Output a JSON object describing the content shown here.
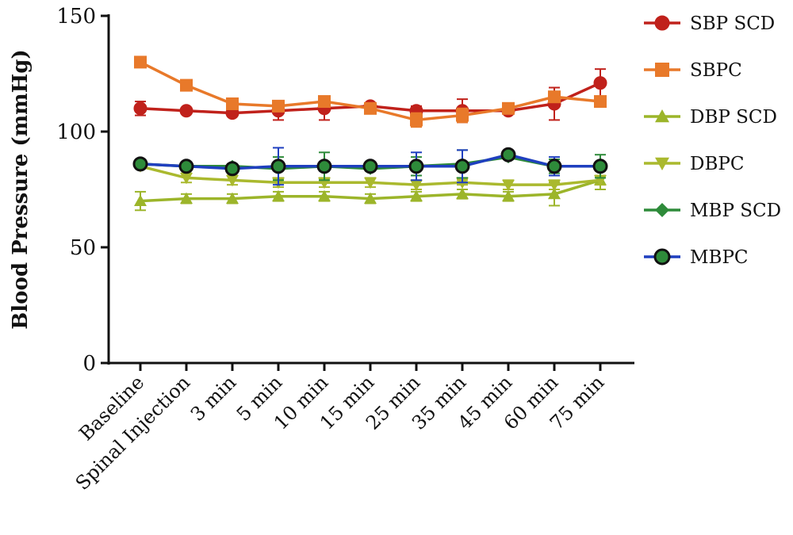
{
  "chart_data": {
    "type": "line",
    "title": "",
    "xlabel": "",
    "ylabel": "Blood Pressure (mmHg)",
    "ylim": [
      0,
      150
    ],
    "yticks": [
      0,
      50,
      100,
      150
    ],
    "grid": false,
    "legend_position": "right",
    "categories": [
      "Baseline",
      "Spinal Injection",
      "3 min",
      "5 min",
      "10 min",
      "15 min",
      "25 min",
      "35 min",
      "45 min",
      "60 min",
      "75 min"
    ],
    "series": [
      {
        "name": "SBP SCD",
        "color": "#c0211b",
        "marker": "circle",
        "values": [
          110,
          109,
          108,
          109,
          110,
          111,
          109,
          109,
          109,
          112,
          121
        ],
        "errors": [
          3,
          1,
          1,
          4,
          5,
          1,
          2,
          5,
          1,
          7,
          6
        ]
      },
      {
        "name": "SBPC",
        "color": "#e8792a",
        "marker": "square",
        "values": [
          130,
          120,
          112,
          111,
          113,
          110,
          105,
          107,
          110,
          115,
          113
        ],
        "errors": [
          1,
          1,
          1,
          2,
          2,
          1,
          3,
          3,
          1,
          2,
          1
        ]
      },
      {
        "name": "DBP SCD",
        "color": "#9cb52a",
        "marker": "triangle-up",
        "values": [
          70,
          71,
          71,
          72,
          72,
          71,
          72,
          73,
          72,
          73,
          79
        ],
        "errors": [
          4,
          2,
          2,
          2,
          2,
          2,
          2,
          2,
          2,
          5,
          4
        ]
      },
      {
        "name": "DBPC",
        "color": "#aab92e",
        "marker": "triangle-down",
        "values": [
          85,
          80,
          79,
          78,
          78,
          78,
          77,
          78,
          77,
          77,
          79
        ],
        "errors": [
          1,
          2,
          2,
          2,
          2,
          2,
          2,
          1,
          2,
          2,
          2
        ]
      },
      {
        "name": "MBP SCD",
        "color": "#2e8b3a",
        "marker": "diamond",
        "values": [
          86,
          85,
          85,
          84,
          85,
          84,
          85,
          86,
          89,
          85,
          85
        ],
        "errors": [
          1,
          1,
          1,
          5,
          6,
          1,
          4,
          6,
          1,
          3,
          5
        ]
      },
      {
        "name": "MBPC",
        "color": "#1f3fbf",
        "marker": "circle",
        "values": [
          86,
          85,
          84,
          85,
          85,
          85,
          85,
          85,
          90,
          85,
          85
        ],
        "errors": [
          1,
          1,
          1,
          8,
          2,
          1,
          6,
          7,
          1,
          4,
          1
        ]
      }
    ]
  }
}
